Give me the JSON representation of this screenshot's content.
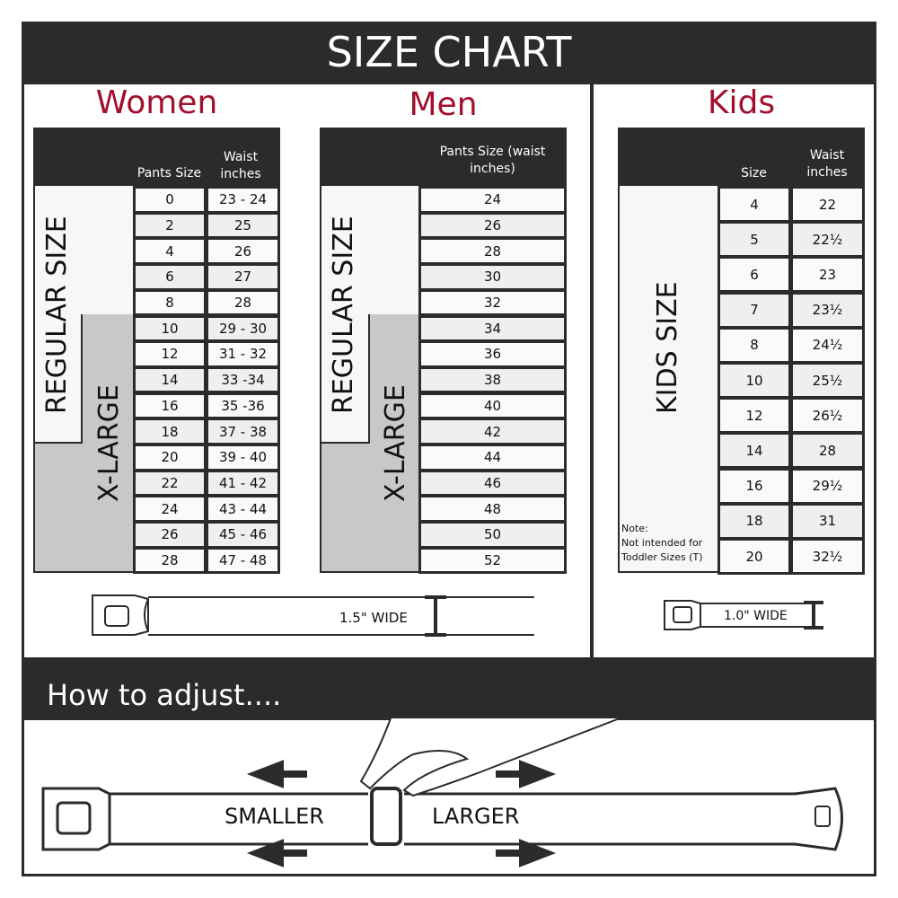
{
  "title": "SIZE CHART",
  "women": {
    "heading": "Women",
    "col1": "Pants Size",
    "col2": "Waist inches",
    "regular_label": "REGULAR SIZE",
    "xl_label": "X-LARGE",
    "rows": [
      [
        "0",
        "23 - 24"
      ],
      [
        "2",
        "25"
      ],
      [
        "4",
        "26"
      ],
      [
        "6",
        "27"
      ],
      [
        "8",
        "28"
      ],
      [
        "10",
        "29 - 30"
      ],
      [
        "12",
        "31 - 32"
      ],
      [
        "14",
        "33 -34"
      ],
      [
        "16",
        "35 -36"
      ],
      [
        "18",
        "37 - 38"
      ],
      [
        "20",
        "39 - 40"
      ],
      [
        "22",
        "41 - 42"
      ],
      [
        "24",
        "43 - 44"
      ],
      [
        "26",
        "45 - 46"
      ],
      [
        "28",
        "47 - 48"
      ]
    ]
  },
  "men": {
    "heading": "Men",
    "col1": "Pants Size (waist inches)",
    "regular_label": "REGULAR SIZE",
    "xl_label": "X-LARGE",
    "rows": [
      "24",
      "26",
      "28",
      "30",
      "32",
      "34",
      "36",
      "38",
      "40",
      "42",
      "44",
      "46",
      "48",
      "50",
      "52"
    ]
  },
  "kids": {
    "heading": "Kids",
    "col1": "Size",
    "col2": "Waist inches",
    "label": "KIDS SIZE",
    "note_title": "Note:",
    "note_text": "Not intended for Toddler Sizes (T)",
    "rows": [
      [
        "4",
        "22"
      ],
      [
        "5",
        "22½"
      ],
      [
        "6",
        "23"
      ],
      [
        "7",
        "23½"
      ],
      [
        "8",
        "24½"
      ],
      [
        "10",
        "25½"
      ],
      [
        "12",
        "26½"
      ],
      [
        "14",
        "28"
      ],
      [
        "16",
        "29½"
      ],
      [
        "18",
        "31"
      ],
      [
        "20",
        "32½"
      ]
    ]
  },
  "adult_width": "1.5\" WIDE",
  "kids_width": "1.0\" WIDE",
  "adjust": {
    "heading": "How to adjust....",
    "smaller": "SMALLER",
    "larger": "LARGER"
  }
}
